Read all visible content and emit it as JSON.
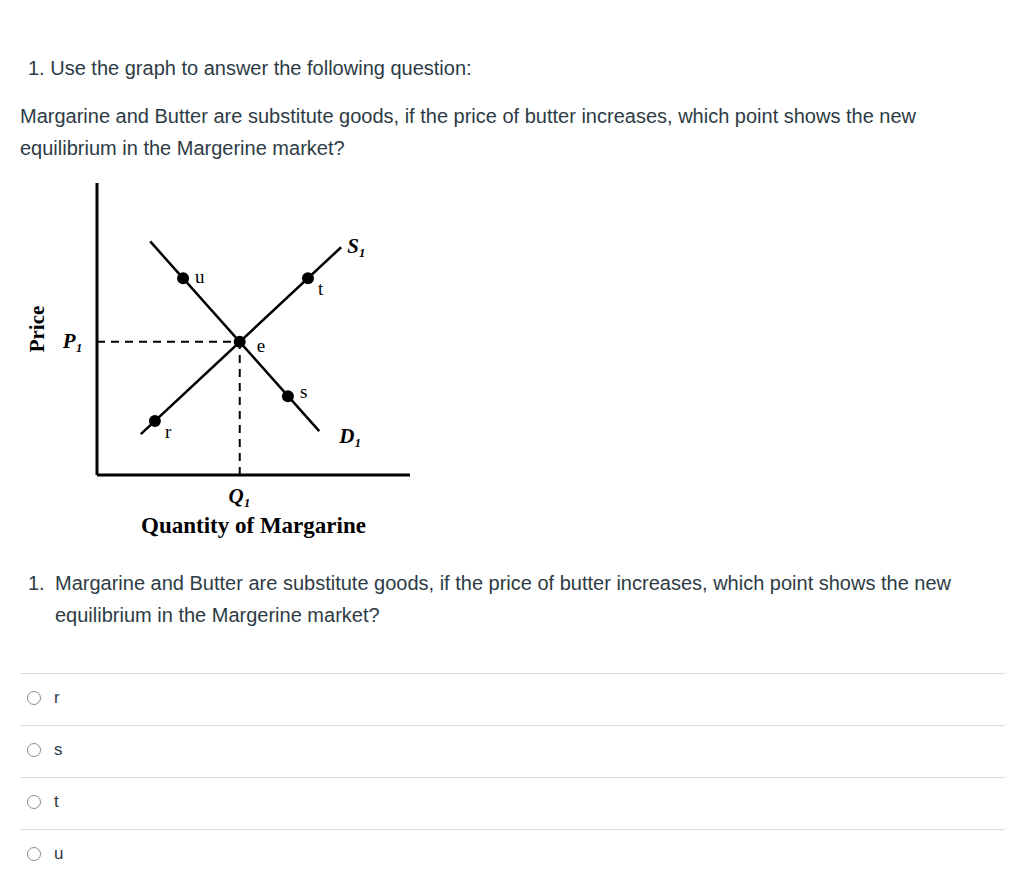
{
  "header": {
    "text": "1. Use the graph to answer the following question:"
  },
  "question": "Margarine and Butter are substitute goods, if the price of butter increases, which point shows the new equilibrium in the Margerine market?",
  "chart_data": {
    "type": "line",
    "x_label": "Quantity of Margarine",
    "y_label": "Price",
    "xlim": [
      0,
      10
    ],
    "ylim": [
      0,
      10
    ],
    "xticks": [
      {
        "value": 4.56,
        "label": "Q₁"
      }
    ],
    "yticks": [
      {
        "value": 4.56,
        "label": "P₁"
      }
    ],
    "tick_labels": true,
    "grid": false,
    "series": [
      {
        "name": "S₁",
        "color": "#000000",
        "x": [
          1.4,
          7.8
        ],
        "values": [
          1.4,
          7.8
        ]
      },
      {
        "name": "D₁",
        "color": "#000000",
        "x": [
          1.7,
          7.1
        ],
        "values": [
          8.0,
          1.5
        ]
      }
    ],
    "points": {
      "labels": [
        "u",
        "t",
        "e",
        "r",
        "s"
      ],
      "x": [
        2.75,
        6.74,
        4.56,
        1.85,
        6.1
      ],
      "y": [
        6.74,
        6.74,
        4.56,
        1.85,
        2.7
      ],
      "color": "#000000"
    }
  },
  "list_item": {
    "number": "1.",
    "text": "Margarine and Butter are substitute goods, if the price of butter increases, which point shows the new equilibrium in the Margerine market?"
  },
  "options": [
    "r",
    "s",
    "t",
    "u"
  ]
}
